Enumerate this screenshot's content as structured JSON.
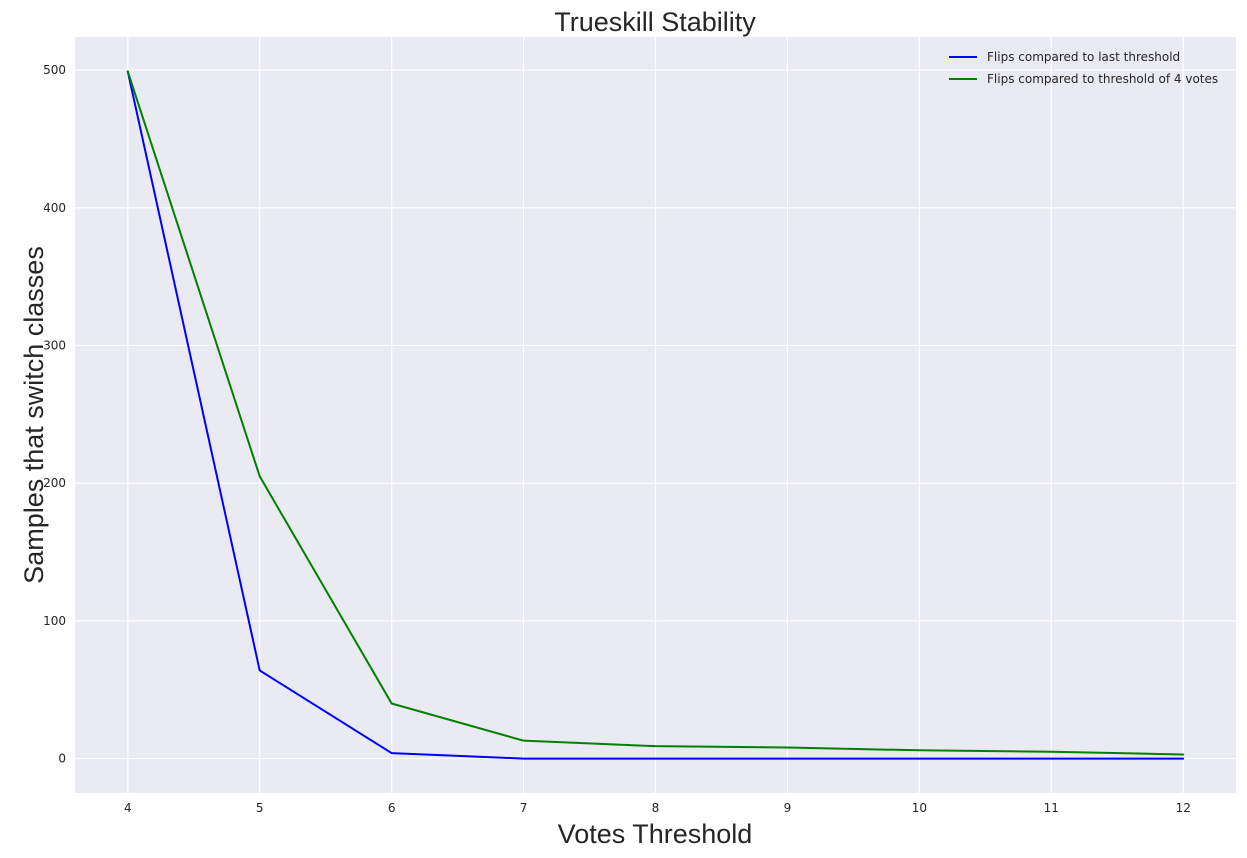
{
  "chart_data": {
    "type": "line",
    "title": "Trueskill Stability",
    "xlabel": "Votes Threshold",
    "ylabel": "Samples that switch classes",
    "x": [
      4,
      5,
      6,
      7,
      8,
      9,
      10,
      11,
      12
    ],
    "x_ticks": [
      "4",
      "5",
      "6",
      "7",
      "8",
      "9",
      "10",
      "11",
      "12"
    ],
    "y_ticks": [
      "0",
      "100",
      "200",
      "300",
      "400",
      "500"
    ],
    "xlim": [
      3.6,
      12.4
    ],
    "ylim": [
      -25,
      524
    ],
    "grid": true,
    "legend_position": "top-right",
    "background_color": "#eaeaf2",
    "grid_color": "#ffffff",
    "series": [
      {
        "name": "Flips compared to last threshold",
        "color": "#0000ff",
        "values": [
          499,
          64,
          4,
          0,
          0,
          0,
          0,
          0,
          0
        ]
      },
      {
        "name": "Flips compared to threshold of 4 votes",
        "color": "#008000",
        "values": [
          499,
          205,
          40,
          13,
          9,
          8,
          6,
          5,
          3
        ]
      }
    ]
  }
}
